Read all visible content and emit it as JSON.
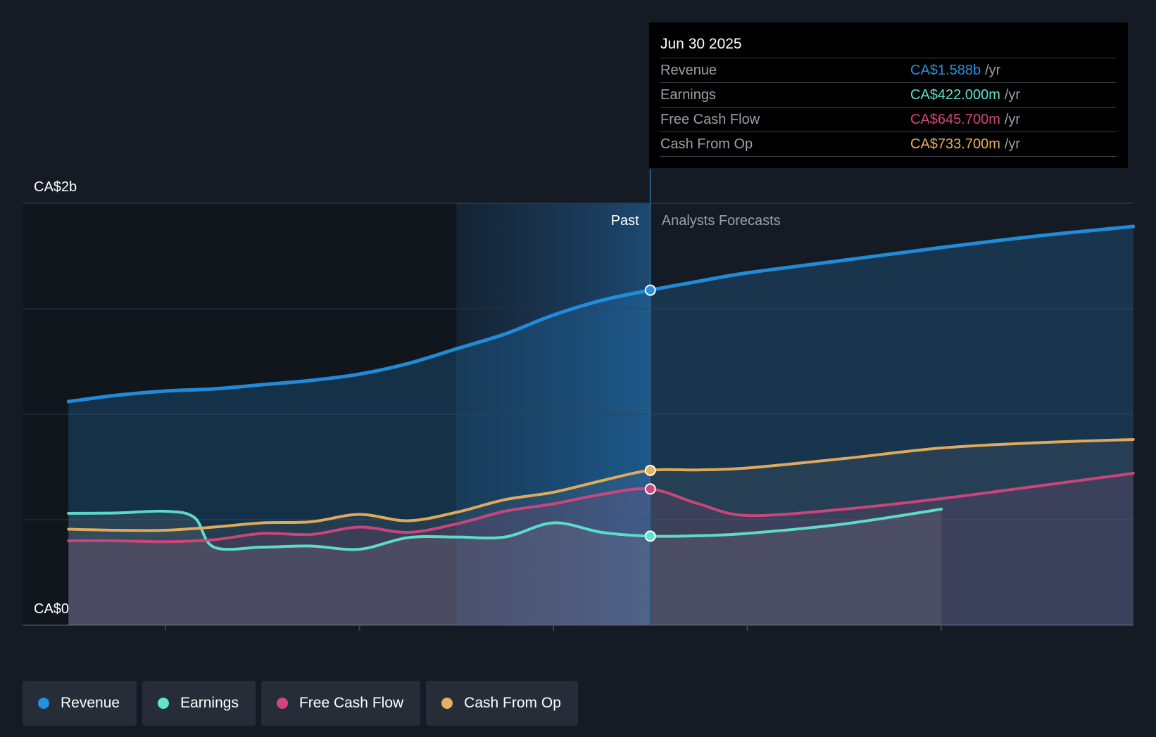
{
  "colors": {
    "revenue": "#2390e0",
    "earnings": "#5fe3cf",
    "free_cash_flow": "#d2467e",
    "cash_from_op": "#e8b05c",
    "background": "#151b24"
  },
  "tooltip": {
    "date": "Jun 30 2025",
    "rows": [
      {
        "label": "Revenue",
        "value": "CA$1.588b",
        "unit": "/yr"
      },
      {
        "label": "Earnings",
        "value": "CA$422.000m",
        "unit": "/yr"
      },
      {
        "label": "Free Cash Flow",
        "value": "CA$645.700m",
        "unit": "/yr"
      },
      {
        "label": "Cash From Op",
        "value": "CA$733.700m",
        "unit": "/yr"
      }
    ]
  },
  "chart_data": {
    "type": "line",
    "title": "",
    "xlabel": "",
    "ylabel": "",
    "y_tick_labels": {
      "top": "CA$2b",
      "bottom": "CA$0"
    },
    "ylim": [
      0,
      2000
    ],
    "xlim": [
      2022.5,
      2027.99
    ],
    "x_ticks": [
      2023,
      2024,
      2025,
      2026,
      2027
    ],
    "past_forecast_split": 2025.5,
    "highlight_start": 2024.5,
    "past_label": "Past",
    "forecast_label": "Analysts Forecasts",
    "unit": "CA$ millions",
    "series": [
      {
        "name": "Revenue",
        "key": "revenue",
        "fill": true,
        "points": [
          [
            2022.5,
            1060
          ],
          [
            2022.75,
            1090
          ],
          [
            2023.0,
            1110
          ],
          [
            2023.25,
            1120
          ],
          [
            2023.5,
            1140
          ],
          [
            2023.75,
            1160
          ],
          [
            2024.0,
            1190
          ],
          [
            2024.25,
            1240
          ],
          [
            2024.5,
            1310
          ],
          [
            2024.75,
            1380
          ],
          [
            2025.0,
            1470
          ],
          [
            2025.25,
            1540
          ],
          [
            2025.5,
            1588
          ],
          [
            2025.75,
            1630
          ],
          [
            2026.0,
            1670
          ],
          [
            2026.5,
            1730
          ],
          [
            2027.0,
            1790
          ],
          [
            2027.5,
            1845
          ],
          [
            2027.99,
            1890
          ]
        ]
      },
      {
        "name": "Earnings",
        "key": "earnings",
        "fill": true,
        "points": [
          [
            2022.5,
            530
          ],
          [
            2022.75,
            532
          ],
          [
            2023.0,
            540
          ],
          [
            2023.15,
            510
          ],
          [
            2023.25,
            370
          ],
          [
            2023.5,
            370
          ],
          [
            2023.75,
            375
          ],
          [
            2024.0,
            360
          ],
          [
            2024.25,
            415
          ],
          [
            2024.5,
            418
          ],
          [
            2024.75,
            418
          ],
          [
            2025.0,
            485
          ],
          [
            2025.25,
            440
          ],
          [
            2025.5,
            422
          ],
          [
            2025.75,
            424
          ],
          [
            2026.0,
            435
          ],
          [
            2026.5,
            480
          ],
          [
            2027.0,
            550
          ]
        ]
      },
      {
        "name": "Free Cash Flow",
        "key": "free_cash_flow",
        "fill": true,
        "points": [
          [
            2022.5,
            400
          ],
          [
            2022.75,
            400
          ],
          [
            2023.0,
            396
          ],
          [
            2023.25,
            405
          ],
          [
            2023.5,
            435
          ],
          [
            2023.75,
            430
          ],
          [
            2024.0,
            465
          ],
          [
            2024.25,
            440
          ],
          [
            2024.5,
            480
          ],
          [
            2024.75,
            540
          ],
          [
            2025.0,
            575
          ],
          [
            2025.25,
            620
          ],
          [
            2025.5,
            645.7
          ],
          [
            2025.75,
            575
          ],
          [
            2026.0,
            520
          ],
          [
            2026.5,
            550
          ],
          [
            2027.0,
            600
          ],
          [
            2027.5,
            660
          ],
          [
            2027.99,
            720
          ]
        ]
      },
      {
        "name": "Cash From Op",
        "key": "cash_from_op",
        "fill": true,
        "points": [
          [
            2022.5,
            455
          ],
          [
            2022.75,
            450
          ],
          [
            2023.0,
            450
          ],
          [
            2023.25,
            465
          ],
          [
            2023.5,
            485
          ],
          [
            2023.75,
            490
          ],
          [
            2024.0,
            525
          ],
          [
            2024.25,
            495
          ],
          [
            2024.5,
            535
          ],
          [
            2024.75,
            595
          ],
          [
            2025.0,
            630
          ],
          [
            2025.25,
            685
          ],
          [
            2025.5,
            733.7
          ],
          [
            2025.75,
            736
          ],
          [
            2026.0,
            745
          ],
          [
            2026.5,
            790
          ],
          [
            2027.0,
            840
          ],
          [
            2027.5,
            865
          ],
          [
            2027.99,
            880
          ]
        ]
      }
    ]
  },
  "legend": [
    {
      "label": "Revenue",
      "key": "revenue"
    },
    {
      "label": "Earnings",
      "key": "earnings"
    },
    {
      "label": "Free Cash Flow",
      "key": "free_cash_flow"
    },
    {
      "label": "Cash From Op",
      "key": "cash_from_op"
    }
  ]
}
